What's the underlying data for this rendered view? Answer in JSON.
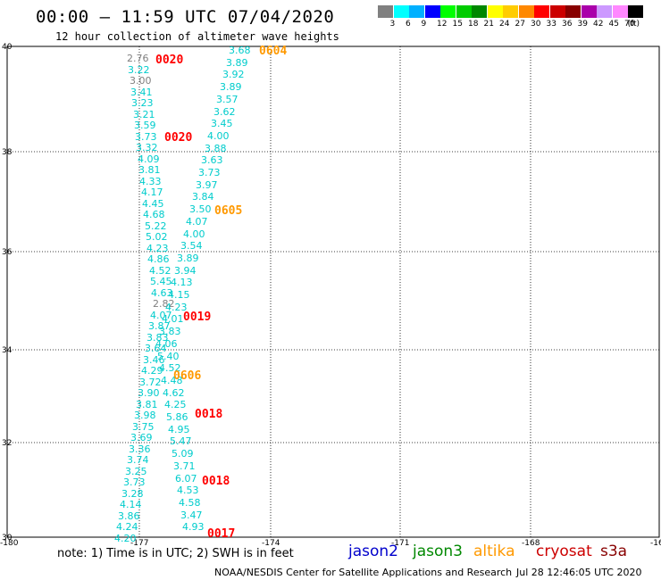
{
  "title": "00:00 — 11:59 UTC 07/04/2020",
  "subtitle": "12 hour collection of altimeter wave heights",
  "legend": {
    "unit": "(ft)",
    "colors": [
      "#808080",
      "#00ffff",
      "#00b0ff",
      "#0000ff",
      "#00ff00",
      "#00cc00",
      "#008800",
      "#ffff00",
      "#ffcc00",
      "#ff8800",
      "#ff0000",
      "#cc0000",
      "#880000",
      "#aa00aa",
      "#cc99ff",
      "#ff88ff",
      "#000000"
    ],
    "labels": [
      "3",
      "6",
      "9",
      "12",
      "15",
      "18",
      "21",
      "24",
      "27",
      "30",
      "33",
      "36",
      "39",
      "42",
      "45",
      "70"
    ]
  },
  "axes": {
    "x_ticks": [
      "-180",
      "-177",
      "-174",
      "-171",
      "-168",
      "-16"
    ],
    "y_ticks": [
      "40",
      "38",
      "36",
      "34",
      "32",
      "30"
    ]
  },
  "note": "note: 1) Time is in UTC; 2) SWH is in feet",
  "satellites": [
    {
      "name": "jason2",
      "color": "#0000cc"
    },
    {
      "name": "jason3",
      "color": "#008800"
    },
    {
      "name": "altika",
      "color": "#ff9900"
    },
    {
      "name": "cryosat",
      "color": "#cc0000"
    },
    {
      "name": "s3a",
      "color": "#880000"
    }
  ],
  "credit": "NOAA/NESDIS Center for Satellite Applications and Research",
  "timestamp": "Jul 28 12:46:05 UTC 2020",
  "pass_times": [
    {
      "text": "0604",
      "color": "#ff9900"
    },
    {
      "text": "0020",
      "color": "#ff0000"
    },
    {
      "text": "0020",
      "color": "#ff0000"
    },
    {
      "text": "0605",
      "color": "#ff9900"
    },
    {
      "text": "0019",
      "color": "#ff0000"
    },
    {
      "text": "0606",
      "color": "#ff9900"
    },
    {
      "text": "0018",
      "color": "#ff0000"
    },
    {
      "text": "0018",
      "color": "#ff0000"
    },
    {
      "text": "0017",
      "color": "#ff0000"
    }
  ],
  "track_left": {
    "values": [
      "2.76",
      "3.22",
      "3.00",
      "3.41",
      "3.23",
      "3.21",
      "3.59",
      "3.73",
      "3.32",
      "4.09",
      "3.81",
      "4.33",
      "4.17",
      "4.45",
      "4.68",
      "5.22",
      "5.02",
      "4.23",
      "4.86",
      "4.52",
      "5.45",
      "4.63",
      "2.82",
      "4.07",
      "3.87",
      "3.83",
      "3.64",
      "3.46",
      "4.29",
      "3.72",
      "3.90",
      "3.81",
      "3.98",
      "3.75",
      "3.69",
      "3.36",
      "3.74",
      "3.25",
      "3.73",
      "3.28",
      "4.14",
      "3.86",
      "4.24",
      "4.20"
    ],
    "colors": [
      "#808080",
      "#00cccc",
      "#808080",
      "#00cccc",
      "#00cccc",
      "#00cccc",
      "#00cccc",
      "#00cccc",
      "#00cccc",
      "#00cccc",
      "#00cccc",
      "#00cccc",
      "#00cccc",
      "#00cccc",
      "#00cccc",
      "#00cccc",
      "#00cccc",
      "#00cccc",
      "#00cccc",
      "#00cccc",
      "#00cccc",
      "#00cccc",
      "#808080",
      "#00cccc",
      "#00cccc",
      "#00cccc",
      "#00cccc",
      "#00cccc",
      "#00cccc",
      "#00cccc",
      "#00cccc",
      "#00cccc",
      "#00cccc",
      "#00cccc",
      "#00cccc",
      "#00cccc",
      "#00cccc",
      "#00cccc",
      "#00cccc",
      "#00cccc",
      "#00cccc",
      "#00cccc",
      "#00cccc",
      "#00cccc"
    ]
  },
  "track_right": {
    "values": [
      "3.68",
      "3.89",
      "3.92",
      "3.89",
      "3.57",
      "3.62",
      "3.45",
      "4.00",
      "3.88",
      "3.63",
      "3.73",
      "3.97",
      "3.84",
      "3.50",
      "4.07",
      "4.00",
      "3.54",
      "3.89",
      "3.94",
      "4.13",
      "4.15",
      "4.23",
      "4.01",
      "3.83",
      "4.06",
      "5.40",
      "4.52",
      "4.48",
      "4.62",
      "4.25",
      "5.86",
      "4.95",
      "5.47",
      "5.09",
      "3.71",
      "6.07",
      "4.53",
      "4.58",
      "3.47",
      "4.93"
    ],
    "colors": [
      "#00cccc",
      "#00cccc",
      "#00cccc",
      "#00cccc",
      "#00cccc",
      "#00cccc",
      "#00cccc",
      "#00cccc",
      "#00cccc",
      "#00cccc",
      "#00cccc",
      "#00cccc",
      "#00cccc",
      "#00cccc",
      "#00cccc",
      "#00cccc",
      "#00cccc",
      "#00cccc",
      "#00cccc",
      "#00cccc",
      "#00cccc",
      "#00cccc",
      "#00cccc",
      "#00cccc",
      "#00cccc",
      "#00cccc",
      "#00cccc",
      "#00cccc",
      "#00cccc",
      "#00cccc",
      "#00cccc",
      "#00cccc",
      "#00cccc",
      "#00cccc",
      "#00cccc",
      "#00cccc",
      "#00cccc",
      "#00cccc",
      "#00cccc",
      "#00cccc"
    ]
  }
}
